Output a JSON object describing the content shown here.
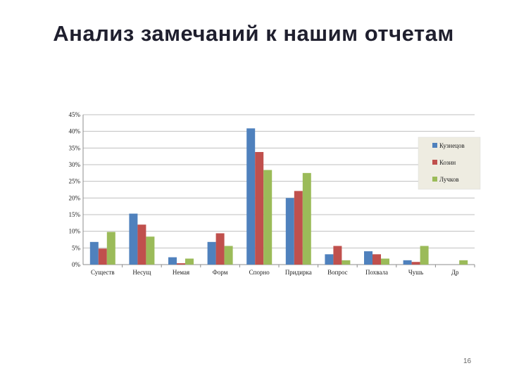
{
  "slide": {
    "title": "Анализ замечаний к нашим отчетам",
    "page_number": "16"
  },
  "chart_data": {
    "type": "bar",
    "categories": [
      "Существ",
      "Несущ",
      "Немая",
      "Форм",
      "Спорно",
      "Придирка",
      "Вопрос",
      "Похвала",
      "Чушь",
      "Др"
    ],
    "series": [
      {
        "name": "Кузнецов",
        "color": "#4f81bd",
        "values": [
          6.8,
          15.3,
          2.2,
          6.8,
          40.9,
          20.0,
          3.1,
          4.0,
          1.3,
          0
        ]
      },
      {
        "name": "Козин",
        "color": "#c0504d",
        "values": [
          4.8,
          12.0,
          0.4,
          9.4,
          33.8,
          22.1,
          5.6,
          3.1,
          0.8,
          0
        ]
      },
      {
        "name": "Лучков",
        "color": "#9bbb59",
        "values": [
          9.8,
          8.4,
          1.8,
          5.6,
          28.4,
          27.5,
          1.3,
          1.8,
          5.6,
          1.3
        ]
      }
    ],
    "y_ticks": [
      "0%",
      "5%",
      "10%",
      "15%",
      "20%",
      "25%",
      "30%",
      "35%",
      "40%",
      "45%"
    ],
    "ylim": [
      0,
      45
    ],
    "grid": true,
    "legend_position": "right"
  }
}
